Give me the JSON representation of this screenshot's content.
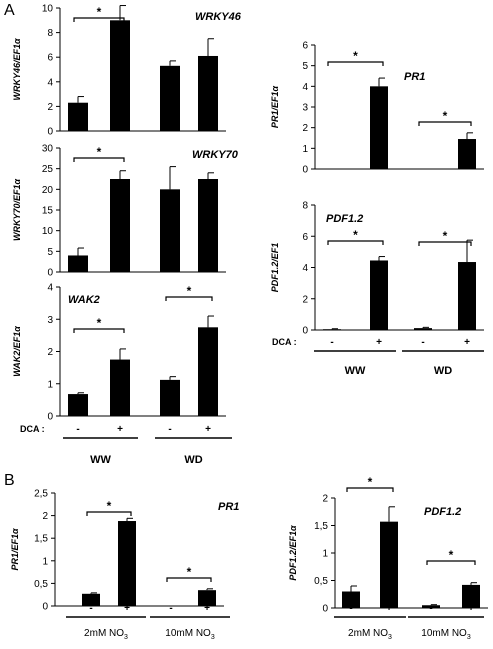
{
  "figure": {
    "panel_a_letter": "A",
    "panel_b_letter": "B"
  },
  "colors": {
    "bar": "#000000",
    "axis": "#000000",
    "background": "#ffffff"
  },
  "chart_data": [
    {
      "id": "wrky46",
      "type": "bar",
      "title": "WRKY46",
      "ylabel": "WRKY46/EF1α",
      "categories": [
        "WW -",
        "WW +",
        "WD -",
        "WD +"
      ],
      "values": [
        2.3,
        9.0,
        5.3,
        6.1
      ],
      "errors": [
        0.5,
        1.2,
        0.4,
        1.4
      ],
      "ylim": [
        0,
        10
      ],
      "yticks": [
        "0",
        "2",
        "4",
        "6",
        "8",
        "10"
      ],
      "significance": [
        [
          0,
          1
        ]
      ]
    },
    {
      "id": "wrky70",
      "type": "bar",
      "title": "WRKY70",
      "ylabel": "WRKY70/EF1α",
      "categories": [
        "WW -",
        "WW +",
        "WD -",
        "WD +"
      ],
      "values": [
        4.0,
        22.5,
        20.0,
        22.5
      ],
      "errors": [
        1.8,
        2.0,
        5.5,
        1.5
      ],
      "ylim": [
        0,
        30
      ],
      "yticks": [
        "0",
        "5",
        "10",
        "15",
        "20",
        "25",
        "30"
      ],
      "significance": [
        [
          0,
          1
        ]
      ]
    },
    {
      "id": "wak2",
      "type": "bar",
      "title": "WAK2",
      "ylabel": "WAK2/EF1α",
      "categories": [
        "WW -",
        "WW +",
        "WD -",
        "WD +"
      ],
      "values": [
        0.68,
        1.75,
        1.12,
        2.75
      ],
      "errors": [
        0.04,
        0.33,
        0.1,
        0.35
      ],
      "ylim": [
        0,
        4
      ],
      "yticks": [
        "0",
        "1",
        "2",
        "3",
        "4"
      ],
      "significance": [
        [
          0,
          1
        ],
        [
          2,
          3
        ]
      ],
      "dca_label": "DCA :",
      "dca_marks": [
        "-",
        "+",
        "-",
        "+"
      ],
      "groups": [
        "WW",
        "WD"
      ]
    },
    {
      "id": "pr1_a",
      "type": "bar",
      "title": "PR1",
      "ylabel": "PR1/EF1α",
      "categories": [
        "WW -",
        "WW +",
        "WD -",
        "WD +"
      ],
      "values": [
        0.02,
        4.0,
        0.02,
        1.45
      ],
      "errors": [
        0,
        0.4,
        0,
        0.3
      ],
      "ylim": [
        0,
        6
      ],
      "yticks": [
        "0",
        "1",
        "2",
        "3",
        "4",
        "5",
        "6"
      ],
      "significance": [
        [
          0,
          1
        ],
        [
          2,
          3
        ]
      ]
    },
    {
      "id": "pdf12_a",
      "type": "bar",
      "title": "PDF1.2",
      "ylabel": "PDF1.2/EF1",
      "categories": [
        "WW -",
        "WW +",
        "WD -",
        "WD +"
      ],
      "values": [
        0.05,
        4.45,
        0.12,
        4.35
      ],
      "errors": [
        0.03,
        0.25,
        0.05,
        1.4
      ],
      "ylim": [
        0,
        8
      ],
      "yticks": [
        "0",
        "2",
        "4",
        "6",
        "8"
      ],
      "significance": [
        [
          0,
          1
        ],
        [
          2,
          3
        ]
      ],
      "dca_label": "DCA :",
      "dca_marks": [
        "-",
        "+",
        "-",
        "+"
      ],
      "groups": [
        "WW",
        "WD"
      ]
    },
    {
      "id": "pr1_b",
      "type": "bar",
      "title": "PR1",
      "ylabel": "PR1/EF1α",
      "categories": [
        "2mM -",
        "2mM +",
        "10mM -",
        "10mM +"
      ],
      "values": [
        0.27,
        1.88,
        0.01,
        0.35
      ],
      "errors": [
        0.02,
        0.06,
        0.0,
        0.03
      ],
      "ylim": [
        0,
        2.5
      ],
      "yticks": [
        "0",
        "0,5",
        "1",
        "1,5",
        "2",
        "2,5"
      ],
      "significance": [
        [
          0,
          1
        ],
        [
          2,
          3
        ]
      ],
      "dca_marks": [
        "-",
        "+",
        "-",
        "+"
      ],
      "groups": [
        "2mM NO",
        "10mM NO"
      ],
      "group_subscript": "3"
    },
    {
      "id": "pdf12_b",
      "type": "bar",
      "title": "PDF1.2",
      "ylabel": "PDF1.2/EF1α",
      "categories": [
        "2mM -",
        "2mM +",
        "10mM -",
        "10mM +"
      ],
      "values": [
        0.3,
        1.57,
        0.05,
        0.42
      ],
      "errors": [
        0.1,
        0.27,
        0.01,
        0.04
      ],
      "ylim": [
        0,
        2
      ],
      "yticks": [
        "0",
        "0,5",
        "1",
        "1,5",
        "2"
      ],
      "significance": [
        [
          0,
          1
        ],
        [
          2,
          3
        ]
      ],
      "dca_marks": [
        "-",
        "+",
        "-",
        "+"
      ],
      "groups": [
        "2mM NO",
        "10mM NO"
      ],
      "group_subscript": "3"
    }
  ],
  "significance_label": "*"
}
